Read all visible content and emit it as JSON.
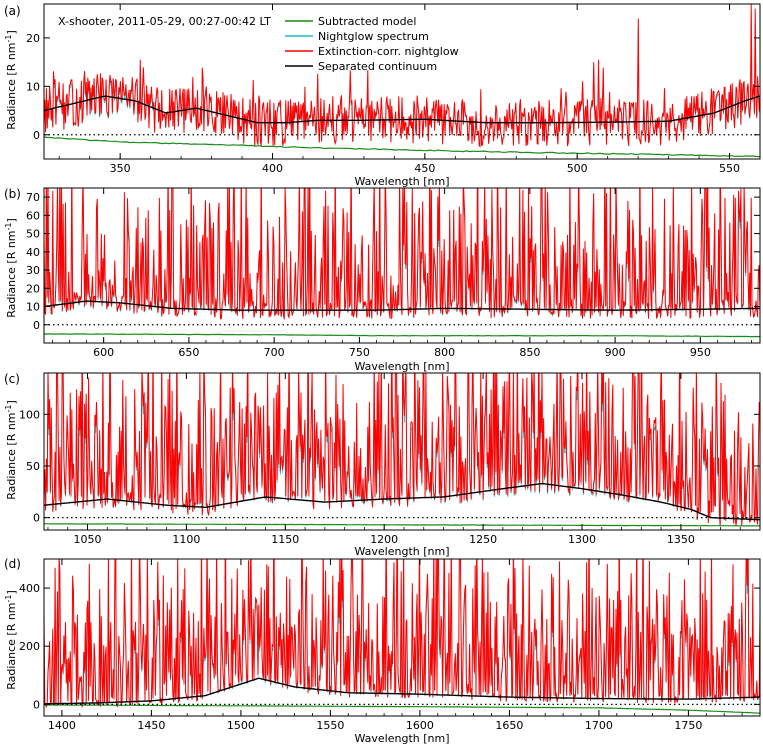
{
  "figure": {
    "annotation": "X-shooter, 2011-05-29, 00:27-00:42 LT",
    "legend": [
      {
        "label": "Subtracted model",
        "color": "#1a8a1a"
      },
      {
        "label": "Nightglow spectrum",
        "color": "#17becf"
      },
      {
        "label": "Extinction-corr. nightglow",
        "color": "#ff0000"
      },
      {
        "label": "Separated continuum",
        "color": "#000000"
      }
    ]
  },
  "chart_data": [
    {
      "type": "line",
      "panel_label": "(a)",
      "xlabel": "Wavelength [nm]",
      "ylabel": "Radiance [R nm",
      "ylabel_sup": "-1",
      "ylabel_close": "]",
      "xlim": [
        325,
        560
      ],
      "ylim": [
        -5,
        27
      ],
      "xticks": [
        350,
        400,
        450,
        500,
        550
      ],
      "yticks": [
        0,
        10,
        20
      ],
      "series": [
        {
          "name": "Extinction-corr. nightglow",
          "color": "#ff0000",
          "noise": 5,
          "line_density": 0.08,
          "line_height": 10,
          "spikes": [
            {
              "x": 520,
              "y": 24
            },
            {
              "x": 557,
              "y": 27
            },
            {
              "x": 558.5,
              "y": 26
            }
          ]
        },
        {
          "name": "Separated continuum",
          "color": "#000000",
          "x": [
            325,
            335,
            345,
            355,
            365,
            375,
            385,
            395,
            405,
            415,
            430,
            450,
            470,
            490,
            510,
            530,
            545,
            555,
            560
          ],
          "y": [
            5,
            6.5,
            8,
            7,
            4.5,
            5.5,
            4,
            2.5,
            2.5,
            3,
            3,
            3.2,
            2.5,
            2.5,
            2.6,
            2.8,
            4.5,
            7,
            8
          ]
        },
        {
          "name": "Subtracted model",
          "color": "#1a8a1a",
          "x": [
            325,
            350,
            380,
            420,
            450,
            480,
            520,
            560
          ],
          "y": [
            -0.5,
            -1.5,
            -2,
            -2.8,
            -3.2,
            -3.6,
            -4,
            -4.5
          ]
        },
        {
          "name": "zero",
          "style": "dotted",
          "y": 0
        }
      ]
    },
    {
      "type": "line",
      "panel_label": "(b)",
      "xlabel": "Wavelength [nm]",
      "ylabel": "Radiance [R nm",
      "ylabel_sup": "-1",
      "ylabel_close": "]",
      "xlim": [
        565,
        985
      ],
      "ylim": [
        -10,
        75
      ],
      "xticks": [
        600,
        650,
        700,
        750,
        800,
        850,
        900,
        950
      ],
      "yticks": [
        0,
        10,
        20,
        30,
        40,
        50,
        60,
        70
      ],
      "series": [
        {
          "name": "Extinction-corr. nightglow",
          "color": "#ff0000",
          "noise": 5,
          "line_density": 0.5,
          "line_height": 75
        },
        {
          "name": "Separated continuum",
          "color": "#000000",
          "x": [
            565,
            590,
            610,
            640,
            680,
            720,
            760,
            800,
            850,
            900,
            950,
            985
          ],
          "y": [
            10,
            13,
            12,
            9,
            8,
            8,
            8,
            9,
            8.5,
            8,
            8.5,
            9
          ]
        },
        {
          "name": "Subtracted model",
          "color": "#1a8a1a",
          "x": [
            565,
            700,
            760,
            900,
            985
          ],
          "y": [
            -5,
            -5.5,
            -6,
            -6,
            -6.5
          ]
        },
        {
          "name": "zero",
          "style": "dotted",
          "y": 0
        }
      ]
    },
    {
      "type": "line",
      "panel_label": "(c)",
      "xlabel": "Wavelength [nm]",
      "ylabel": "Radiance [R nm",
      "ylabel_sup": "-1",
      "ylabel_close": "]",
      "xlim": [
        1028,
        1390
      ],
      "ylim": [
        -12,
        140
      ],
      "xticks": [
        1050,
        1100,
        1150,
        1200,
        1250,
        1300,
        1350
      ],
      "yticks": [
        0,
        50,
        100
      ],
      "series": [
        {
          "name": "Extinction-corr. nightglow",
          "color": "#ff0000",
          "noise": 8,
          "line_density": 0.65,
          "line_height": 140
        },
        {
          "name": "Separated continuum",
          "color": "#000000",
          "x": [
            1028,
            1060,
            1090,
            1110,
            1140,
            1170,
            1200,
            1230,
            1260,
            1280,
            1300,
            1320,
            1340,
            1355,
            1365,
            1390
          ],
          "y": [
            12,
            18,
            12,
            10,
            20,
            15,
            18,
            20,
            28,
            33,
            28,
            22,
            15,
            8,
            0,
            -2
          ]
        },
        {
          "name": "Subtracted model",
          "color": "#1a8a1a",
          "x": [
            1028,
            1390
          ],
          "y": [
            -6,
            -8
          ]
        },
        {
          "name": "zero",
          "style": "dotted",
          "y": 0
        }
      ]
    },
    {
      "type": "line",
      "panel_label": "(d)",
      "xlabel": "Wavelength [nm]",
      "ylabel": "Radiance [R nm",
      "ylabel_sup": "-1",
      "ylabel_close": "]",
      "xlim": [
        1390,
        1790
      ],
      "ylim": [
        -40,
        500
      ],
      "xticks": [
        1400,
        1450,
        1500,
        1550,
        1600,
        1650,
        1700,
        1750
      ],
      "yticks": [
        0,
        200,
        400
      ],
      "series": [
        {
          "name": "Extinction-corr. nightglow",
          "color": "#ff0000",
          "noise": 15,
          "line_density": 0.65,
          "line_height": 500
        },
        {
          "name": "Separated continuum",
          "color": "#000000",
          "x": [
            1390,
            1420,
            1450,
            1480,
            1500,
            1510,
            1530,
            1560,
            1600,
            1650,
            1700,
            1750,
            1790
          ],
          "y": [
            2,
            5,
            12,
            30,
            70,
            90,
            60,
            40,
            35,
            25,
            20,
            18,
            25
          ]
        },
        {
          "name": "Subtracted model",
          "color": "#1a8a1a",
          "x": [
            1390,
            1500,
            1600,
            1700,
            1750,
            1790
          ],
          "y": [
            -2,
            -5,
            -8,
            -12,
            -20,
            -30
          ]
        },
        {
          "name": "zero",
          "style": "dotted",
          "y": 0
        }
      ]
    }
  ]
}
